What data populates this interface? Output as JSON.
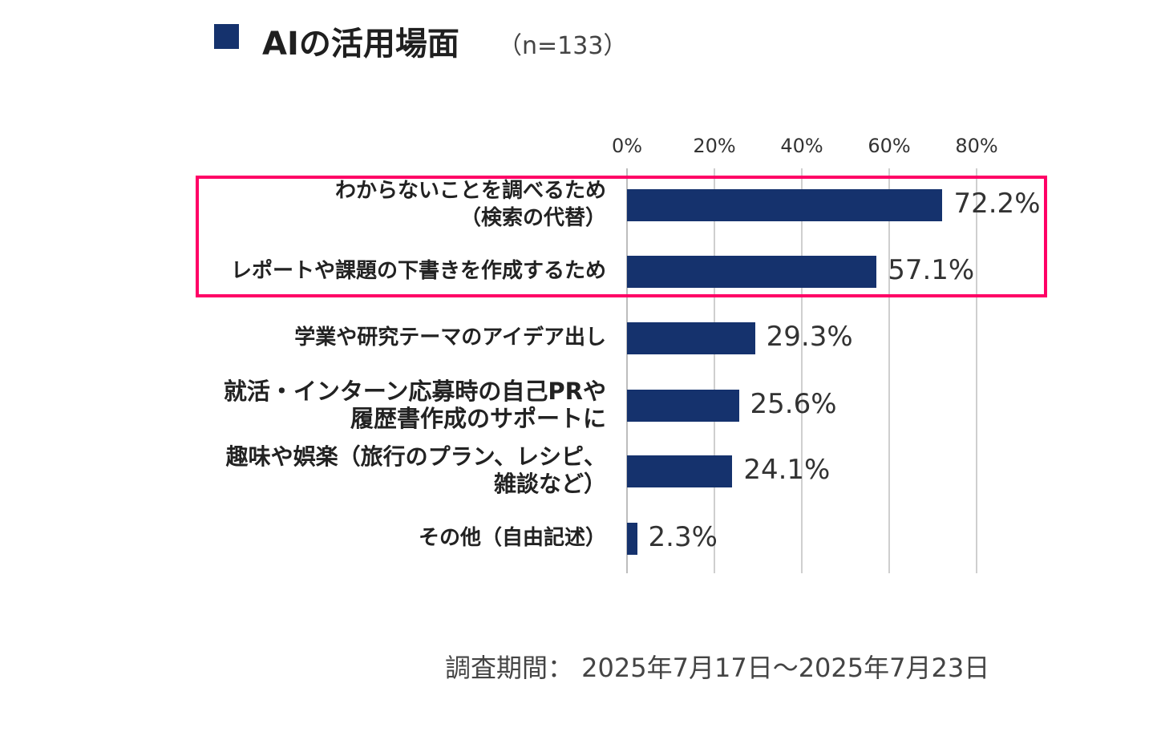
{
  "chart_data": {
    "type": "bar",
    "orientation": "horizontal",
    "title": "AIの活用場面",
    "sample_size": "（n=133）",
    "categories": [
      [
        "わからないことを調べるため",
        "（検索の代替）"
      ],
      [
        "レポートや課題の下書きを作成するため"
      ],
      [
        "学業や研究テーマのアイデア出し"
      ],
      [
        "就活・インターン応募時の自己PRや",
        "履歴書作成のサポートに"
      ],
      [
        "趣味や娯楽（旅行のプラン、レシピ、",
        "雑談など）"
      ],
      [
        "その他（自由記述）"
      ]
    ],
    "values": [
      72.2,
      57.1,
      29.3,
      25.6,
      24.1,
      2.3
    ],
    "value_labels": [
      "72.2%",
      "57.1%",
      "29.3%",
      "25.6%",
      "24.1%",
      "2.3%"
    ],
    "xlim": [
      0,
      80
    ],
    "xticks": [
      "0%",
      "20%",
      "40%",
      "60%",
      "80%"
    ],
    "grid": true,
    "highlighted_categories": [
      0,
      1
    ],
    "footnote": "調査期間： 2025年7月17日～2025年7月23日"
  },
  "colors": {
    "bar": "#15326d",
    "title_square": "#15326d",
    "highlight_border": "#ff0066"
  }
}
